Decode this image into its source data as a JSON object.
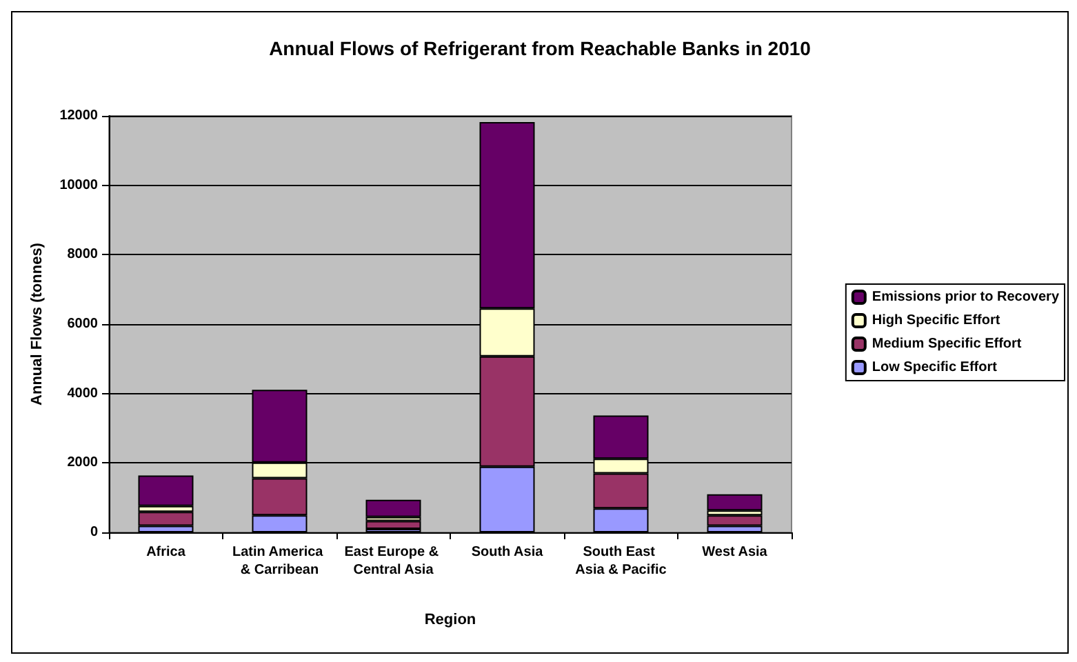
{
  "chart_data": {
    "type": "bar",
    "stacked": true,
    "title": "Annual Flows of Refrigerant from Reachable Banks in 2010",
    "xlabel": "Region",
    "ylabel": "Annual Flows (tonnes)",
    "categories": [
      "Africa",
      "Latin America & Carribean",
      "East Europe & Central Asia",
      "South Asia",
      "South East Asia & Pacific",
      "West Asia"
    ],
    "series": [
      {
        "name": "Low Specific Effort",
        "color": "#9999ff",
        "values": [
          190,
          490,
          100,
          1890,
          690,
          190
        ]
      },
      {
        "name": "Medium Specific Effort",
        "color": "#993366",
        "values": [
          400,
          1070,
          230,
          3180,
          1010,
          300
        ]
      },
      {
        "name": "High Specific Effort",
        "color": "#ffffcc",
        "values": [
          170,
          450,
          110,
          1380,
          420,
          140
        ]
      },
      {
        "name": "Emissions prior to Recovery",
        "color": "#660066",
        "values": [
          880,
          2100,
          500,
          5370,
          1250,
          470
        ]
      }
    ],
    "ylim": [
      0,
      12000
    ],
    "yticks": [
      0,
      2000,
      4000,
      6000,
      8000,
      10000,
      12000
    ],
    "grid": "y",
    "legend": "right"
  }
}
